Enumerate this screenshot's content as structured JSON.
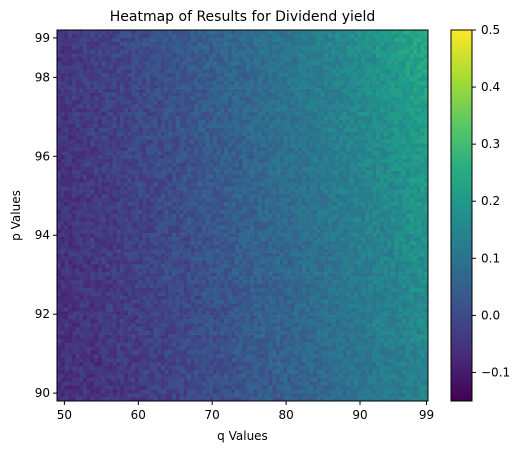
{
  "chart_data": {
    "type": "heatmap",
    "title": "Heatmap of Results for Dividend yield",
    "xlabel": "q Values",
    "ylabel": "p Values",
    "x_range": [
      49,
      99.2
    ],
    "y_range": [
      89.8,
      99.2
    ],
    "x_ticks": [
      50,
      60,
      70,
      80,
      90,
      99
    ],
    "y_ticks": [
      90,
      92,
      94,
      96,
      98,
      99
    ],
    "x_tick_labels": [
      "50",
      "60",
      "70",
      "80",
      "90",
      "99"
    ],
    "y_tick_labels": [
      "90",
      "92",
      "94",
      "96",
      "98",
      "99"
    ],
    "grid_cols": 100,
    "grid_rows": 95,
    "value_model": "value rises with q and is slightly higher at low p; pixel-level noise",
    "value_range_estimate": [
      -0.12,
      0.33
    ],
    "colormap": "viridis",
    "colorbar": {
      "range": [
        -0.15,
        0.5
      ],
      "ticks": [
        -0.1,
        0.0,
        0.1,
        0.2,
        0.3,
        0.4,
        0.5
      ],
      "tick_labels": [
        "−0.1",
        "0.0",
        "0.1",
        "0.2",
        "0.3",
        "0.4",
        "0.5"
      ]
    }
  }
}
